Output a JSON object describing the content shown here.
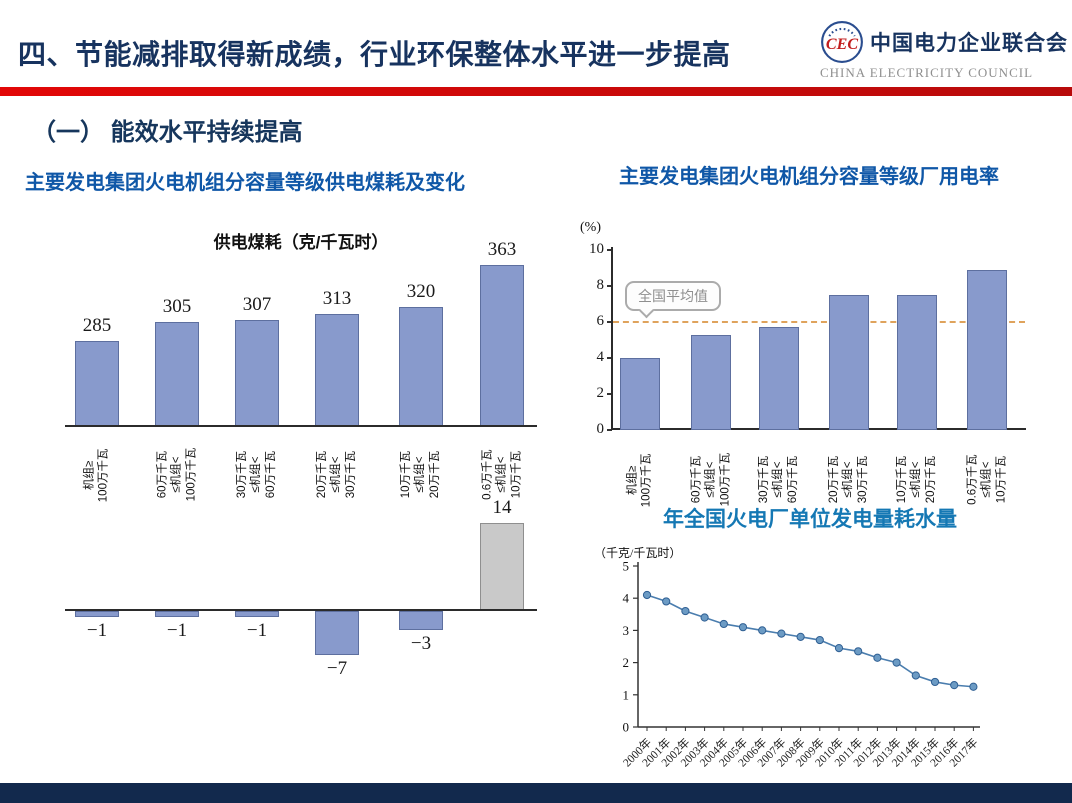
{
  "slide": {
    "title": "四、节能减排取得新成绩，行业环保整体水平进一步提高",
    "logo": {
      "org_cn": "中国电力企业联合会",
      "org_en": "CHINA ELECTRICITY COUNCIL",
      "emblem": "cec-circular-emblem"
    },
    "section_heading": "（一） 能效水平持续提高",
    "left_panel_title": "主要发电集团火电机组分容量等级供电煤耗及变化",
    "right_panel_title": "主要发电集团火电机组分容量等级厂用电率",
    "water_panel_title": "年全国火电厂单位发电量耗水量"
  },
  "colors": {
    "title_navy": "#17335f",
    "panel_title_blue": "#0f57a7",
    "water_title_blue": "#1578b4",
    "divider_red": "#d40b0b",
    "footer_navy": "#12294d",
    "bar_fill": "#889acc",
    "bar_border": "#5d6f9f",
    "gray_bar_fill": "#c9c9c9",
    "gray_bar_border": "#8f8f8f",
    "average_line_orange": "#dfa35c",
    "line_series_blue": "#4a7dae"
  },
  "chart_data": [
    {
      "id": "coal_consumption",
      "type": "bar",
      "title": "供电煤耗（克/千瓦时）",
      "categories": [
        [
          "机组≥",
          "100万千瓦"
        ],
        [
          "60万千瓦",
          "≤机组<",
          "100万千瓦"
        ],
        [
          "30万千瓦",
          "≤机组<",
          "60万千瓦"
        ],
        [
          "20万千瓦",
          "≤机组<",
          "30万千瓦"
        ],
        [
          "10万千瓦",
          "≤机组<",
          "20万千瓦"
        ],
        [
          "0.6万千瓦",
          "≤机组<",
          "10万千瓦"
        ]
      ],
      "values": [
        285,
        305,
        307,
        313,
        320,
        363
      ],
      "grid": false,
      "value_labels": true
    },
    {
      "id": "coal_consumption_change",
      "type": "bar",
      "title": "",
      "categories": [
        [
          "机组≥",
          "100万千瓦"
        ],
        [
          "60万千瓦",
          "≤机组<",
          "100万千瓦"
        ],
        [
          "30万千瓦",
          "≤机组<",
          "60万千瓦"
        ],
        [
          "20万千瓦",
          "≤机组<",
          "30万千瓦"
        ],
        [
          "10万千瓦",
          "≤机组<",
          "20万千瓦"
        ],
        [
          "0.6万千瓦",
          "≤机组<",
          "10万千瓦"
        ]
      ],
      "values": [
        -1,
        -1,
        -1,
        -7,
        -3,
        14
      ],
      "highlight_last_bar": "gray",
      "value_labels": true
    },
    {
      "id": "plant_power_rate",
      "type": "bar",
      "title": "",
      "ylabel": "(%)",
      "ylim": [
        0,
        10
      ],
      "yticks": [
        0,
        2,
        4,
        6,
        8,
        10
      ],
      "categories": [
        [
          "机组≥",
          "100万千瓦"
        ],
        [
          "60万千瓦",
          "≤机组<",
          "100万千瓦"
        ],
        [
          "30万千瓦",
          "≤机组<",
          "60万千瓦"
        ],
        [
          "20万千瓦",
          "≤机组<",
          "30万千瓦"
        ],
        [
          "10万千瓦",
          "≤机组<",
          "20万千瓦"
        ],
        [
          "0.6万千瓦",
          "≤机组<",
          "10万千瓦"
        ]
      ],
      "values": [
        4.0,
        5.3,
        5.7,
        7.5,
        7.5,
        8.9
      ],
      "average_line": {
        "value": 6,
        "label": "全国平均值"
      }
    },
    {
      "id": "water_consumption_per_kwh",
      "type": "line",
      "title": "",
      "ylabel": "（千克/千瓦时）",
      "ylim": [
        0,
        5
      ],
      "yticks": [
        0,
        1,
        2,
        3,
        4,
        5
      ],
      "x": [
        "2000年",
        "2001年",
        "2002年",
        "2003年",
        "2004年",
        "2005年",
        "2006年",
        "2007年",
        "2008年",
        "2009年",
        "2010年",
        "2011年",
        "2012年",
        "2013年",
        "2014年",
        "2015年",
        "2016年",
        "2017年"
      ],
      "values": [
        4.1,
        3.9,
        3.6,
        3.4,
        3.2,
        3.1,
        3.0,
        2.9,
        2.8,
        2.7,
        2.45,
        2.35,
        2.15,
        2.0,
        1.6,
        1.4,
        1.3,
        1.25
      ]
    }
  ]
}
